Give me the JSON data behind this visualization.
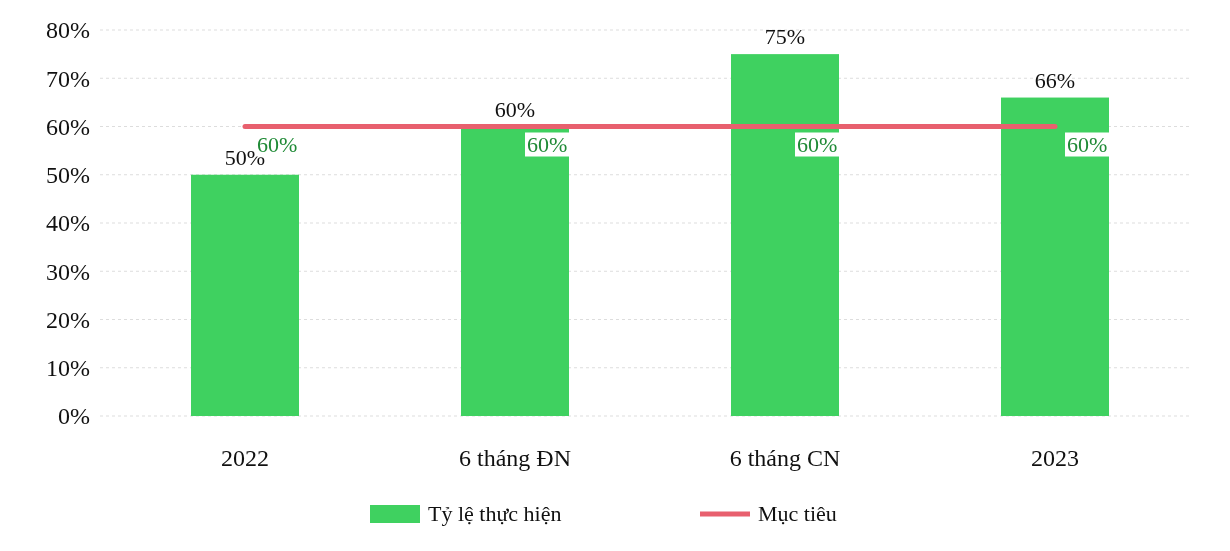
{
  "chart_data": {
    "type": "bar",
    "categories": [
      "2022",
      "6 tháng ĐN",
      "6 tháng CN",
      "2023"
    ],
    "series": [
      {
        "name": "Tỷ lệ thực hiện",
        "color": "#3fd160",
        "values": [
          50,
          60,
          75,
          66
        ],
        "value_labels": [
          "50%",
          "60%",
          "75%",
          "66%"
        ]
      },
      {
        "name": "Mục tiêu",
        "type": "line",
        "color": "#e8606e",
        "values": [
          60,
          60,
          60,
          60
        ],
        "value_labels": [
          "60%",
          "60%",
          "60%",
          "60%"
        ]
      }
    ],
    "ylim": [
      0,
      80
    ],
    "yticks": [
      {
        "value": 0,
        "label": "0%"
      },
      {
        "value": 10,
        "label": "10%"
      },
      {
        "value": 20,
        "label": "20%"
      },
      {
        "value": 30,
        "label": "30%"
      },
      {
        "value": 40,
        "label": "40%"
      },
      {
        "value": 50,
        "label": "50%"
      },
      {
        "value": 60,
        "label": "60%"
      },
      {
        "value": 70,
        "label": "70%"
      },
      {
        "value": 80,
        "label": "80%"
      }
    ],
    "grid": "y",
    "legend": "bottom"
  }
}
